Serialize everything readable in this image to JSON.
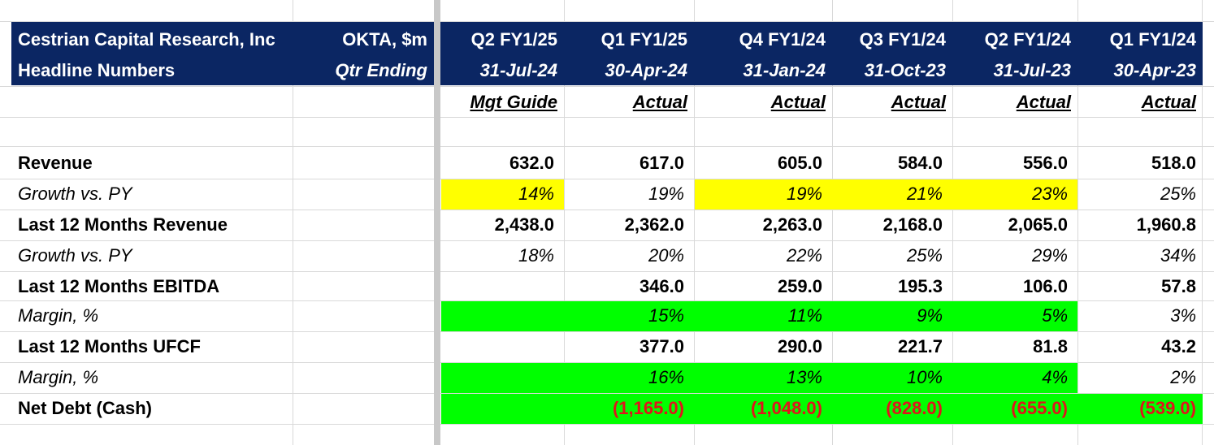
{
  "header": {
    "title_line1": "Cestrian Capital Research, Inc",
    "title_line2": "Headline Numbers",
    "ticker": "OKTA, $m",
    "qtr_ending": "Qtr Ending"
  },
  "columns": [
    {
      "quarter": "Q2 FY1/25",
      "date": "31-Jul-24",
      "type": "Mgt Guide"
    },
    {
      "quarter": "Q1 FY1/25",
      "date": "30-Apr-24",
      "type": "Actual"
    },
    {
      "quarter": "Q4 FY1/24",
      "date": "31-Jan-24",
      "type": "Actual"
    },
    {
      "quarter": "Q3 FY1/24",
      "date": "31-Oct-23",
      "type": "Actual"
    },
    {
      "quarter": "Q2 FY1/24",
      "date": "31-Jul-23",
      "type": "Actual"
    },
    {
      "quarter": "Q1 FY1/24",
      "date": "30-Apr-23",
      "type": "Actual"
    }
  ],
  "rows": [
    {
      "label": "Revenue",
      "style": "bold",
      "values": [
        "632.0",
        "617.0",
        "605.0",
        "584.0",
        "556.0",
        "518.0"
      ]
    },
    {
      "label": "Growth vs. PY",
      "style": "italic",
      "values": [
        "14%",
        "19%",
        "19%",
        "21%",
        "23%",
        "25%"
      ]
    },
    {
      "label": "Last 12 Months Revenue",
      "style": "bold",
      "values": [
        "2,438.0",
        "2,362.0",
        "2,263.0",
        "2,168.0",
        "2,065.0",
        "1,960.8"
      ]
    },
    {
      "label": "Growth vs. PY",
      "style": "italic",
      "values": [
        "18%",
        "20%",
        "22%",
        "25%",
        "29%",
        "34%"
      ]
    },
    {
      "label": "Last 12 Months EBITDA",
      "style": "bold",
      "values": [
        "",
        "346.0",
        "259.0",
        "195.3",
        "106.0",
        "57.8"
      ]
    },
    {
      "label": "Margin, %",
      "style": "italic",
      "values": [
        "",
        "15%",
        "11%",
        "9%",
        "5%",
        "3%"
      ]
    },
    {
      "label": "Last 12 Months UFCF",
      "style": "bold",
      "values": [
        "",
        "377.0",
        "290.0",
        "221.7",
        "81.8",
        "43.2"
      ]
    },
    {
      "label": "Margin, %",
      "style": "italic",
      "values": [
        "",
        "16%",
        "13%",
        "10%",
        "4%",
        "2%"
      ]
    },
    {
      "label": "Net Debt (Cash)",
      "style": "bold",
      "values": [
        "",
        "(1,165.0)",
        "(1,048.0)",
        "(828.0)",
        "(655.0)",
        "(539.0)"
      ]
    }
  ],
  "highlight_colors": {
    "yellow": "#ffff00",
    "green": "#00ff00",
    "header_bg": "#0b2663",
    "negative_text": "#e0141c"
  }
}
